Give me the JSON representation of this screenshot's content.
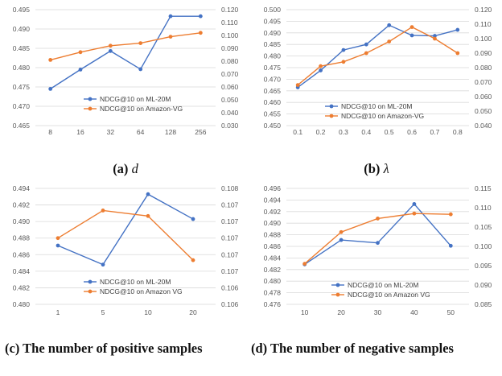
{
  "colors": {
    "ml20m": "#4472C4",
    "amazon": "#ED7D31",
    "grid": "#d9d9d9",
    "tick": "#595959"
  },
  "chart_data": [
    {
      "id": "a",
      "type": "line",
      "caption_label": "(a)",
      "caption_symbol": "d",
      "caption_rest": "",
      "categories": [
        "8",
        "16",
        "32",
        "64",
        "128",
        "256"
      ],
      "left_ticks": [
        "0.495",
        "0.490",
        "0.485",
        "0.480",
        "0.475",
        "0.470",
        "0.465"
      ],
      "right_ticks": [
        "0.120",
        "0.110",
        "0.100",
        "0.090",
        "0.080",
        "0.070",
        "0.060",
        "0.050",
        "0.040",
        "0.030"
      ],
      "ylim_left": [
        0.465,
        0.495
      ],
      "ylim_right": [
        0.03,
        0.12
      ],
      "grid": true,
      "legend_position": "bottom-center",
      "series": [
        {
          "name": "NDCG@10 on ML-20M",
          "axis": "left",
          "color_key": "ml20m",
          "values": [
            0.4745,
            0.4795,
            0.4843,
            0.4796,
            0.4933,
            0.4933
          ]
        },
        {
          "name": "NDCG@10 on Amazon-VG",
          "axis": "right",
          "color_key": "amazon",
          "values": [
            0.081,
            0.087,
            0.092,
            0.094,
            0.099,
            0.102
          ]
        }
      ]
    },
    {
      "id": "b",
      "type": "line",
      "caption_label": "(b)",
      "caption_symbol": "λ",
      "caption_rest": "",
      "categories": [
        "0.1",
        "0.2",
        "0.3",
        "0.4",
        "0.5",
        "0.6",
        "0.7",
        "0.8"
      ],
      "left_ticks": [
        "0.500",
        "0.495",
        "0.490",
        "0.485",
        "0.480",
        "0.475",
        "0.470",
        "0.465",
        "0.460",
        "0.455",
        "0.450"
      ],
      "right_ticks": [
        "0.120",
        "0.110",
        "0.100",
        "0.090",
        "0.080",
        "0.070",
        "0.060",
        "0.050",
        "0.040"
      ],
      "ylim_left": [
        0.45,
        0.5
      ],
      "ylim_right": [
        0.04,
        0.12
      ],
      "grid": true,
      "legend_position": "bottom-center",
      "series": [
        {
          "name": "NDCG@10 on ML-20M",
          "axis": "left",
          "color_key": "ml20m",
          "values": [
            0.4665,
            0.4738,
            0.4826,
            0.485,
            0.4933,
            0.4889,
            0.4887,
            0.4913
          ]
        },
        {
          "name": "NDCG@10 on Amazon-VG",
          "axis": "right",
          "color_key": "amazon",
          "values": [
            0.068,
            0.081,
            0.084,
            0.09,
            0.098,
            0.108,
            0.1,
            0.09
          ]
        }
      ]
    },
    {
      "id": "c",
      "type": "line",
      "caption_label": "(c)",
      "caption_symbol": "",
      "caption_rest": "The number of positive samples",
      "categories": [
        "1",
        "5",
        "10",
        "20"
      ],
      "left_ticks": [
        "0.494",
        "0.492",
        "0.490",
        "0.488",
        "0.486",
        "0.484",
        "0.482",
        "0.480"
      ],
      "right_ticks": [
        "0.108",
        "0.107",
        "0.107",
        "0.107",
        "0.107",
        "0.107",
        "0.106",
        "0.106"
      ],
      "ylim_left": [
        0.48,
        0.494
      ],
      "ylim_right": [
        0.1058,
        0.1079
      ],
      "grid": true,
      "legend_position": "bottom-center",
      "series": [
        {
          "name": "NDCG@10 on ML-20M",
          "axis": "left",
          "color_key": "ml20m",
          "values": [
            0.4871,
            0.4848,
            0.4933,
            0.4903
          ]
        },
        {
          "name": "NDCG@10 on Amazon VG",
          "axis": "right",
          "color_key": "amazon",
          "values": [
            0.107,
            0.1075,
            0.1074,
            0.1066
          ]
        }
      ]
    },
    {
      "id": "d",
      "type": "line",
      "caption_label": "(d)",
      "caption_symbol": "",
      "caption_rest": "The number of negative samples",
      "categories": [
        "10",
        "20",
        "30",
        "40",
        "50"
      ],
      "left_ticks": [
        "0.496",
        "0.494",
        "0.492",
        "0.490",
        "0.488",
        "0.486",
        "0.484",
        "0.482",
        "0.480",
        "0.478",
        "0.476"
      ],
      "right_ticks": [
        "0.115",
        "0.110",
        "0.105",
        "0.100",
        "0.095",
        "0.090",
        "0.085"
      ],
      "ylim_left": [
        0.476,
        0.496
      ],
      "ylim_right": [
        0.085,
        0.115
      ],
      "grid": true,
      "legend_position": "bottom-center",
      "series": [
        {
          "name": "NDCG@10 on ML-20M",
          "axis": "left",
          "color_key": "ml20m",
          "values": [
            0.4829,
            0.4871,
            0.4866,
            0.4933,
            0.4861
          ]
        },
        {
          "name": "NDCG@10 on Amazon VG",
          "axis": "right",
          "color_key": "amazon",
          "values": [
            0.0955,
            0.1037,
            0.1072,
            0.1085,
            0.1083
          ]
        }
      ]
    }
  ]
}
